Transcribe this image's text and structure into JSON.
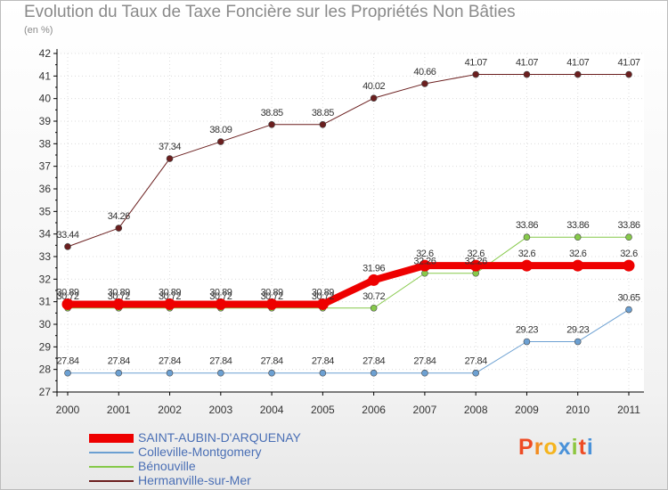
{
  "chart_data": {
    "type": "line",
    "title": "Evolution du Taux de Taxe Foncière sur les Propriétés Non Bâties",
    "ylabel": "(en %)",
    "xlabel": "",
    "x": [
      "2000",
      "2001",
      "2002",
      "2003",
      "2004",
      "2005",
      "2006",
      "2007",
      "2008",
      "2009",
      "2010",
      "2011"
    ],
    "ylim": [
      27,
      42
    ],
    "yticks": [
      "27",
      "28",
      "29",
      "30",
      "31",
      "32",
      "33",
      "34",
      "35",
      "36",
      "37",
      "38",
      "39",
      "40",
      "41",
      "42"
    ],
    "series": [
      {
        "name": "Hermanville-sur-Mer",
        "color": "#6b1f1f",
        "width": 1,
        "values": [
          33.44,
          34.26,
          37.34,
          38.09,
          38.85,
          38.85,
          40.02,
          40.66,
          41.07,
          41.07,
          41.07,
          41.07
        ],
        "labels": [
          "33.44",
          "34.26",
          "37.34",
          "38.09",
          "38.85",
          "38.85",
          "40.02",
          "40.66",
          "41.07",
          "41.07",
          "41.07",
          "41.07"
        ]
      },
      {
        "name": "Bénouville",
        "color": "#86c94a",
        "width": 1,
        "values": [
          30.72,
          30.72,
          30.72,
          30.72,
          30.72,
          30.72,
          30.72,
          32.26,
          32.26,
          33.86,
          33.86,
          33.86
        ],
        "labels": [
          "30.72",
          "30.72",
          "30.72",
          "30.72",
          "30.72",
          "30.72",
          "30.72",
          "32.26",
          "32.26",
          "33.86",
          "33.86",
          "33.86"
        ]
      },
      {
        "name": "Colleville-Montgomery",
        "color": "#6ca0d2",
        "width": 1,
        "values": [
          27.84,
          27.84,
          27.84,
          27.84,
          27.84,
          27.84,
          27.84,
          27.84,
          27.84,
          29.23,
          29.23,
          30.65
        ],
        "labels": [
          "27.84",
          "27.84",
          "27.84",
          "27.84",
          "27.84",
          "27.84",
          "27.84",
          "27.84",
          "27.84",
          "29.23",
          "29.23",
          "30.65"
        ]
      },
      {
        "name": "SAINT-AUBIN-D'ARQUENAY",
        "color": "#ee0000",
        "width": 8,
        "values": [
          30.89,
          30.89,
          30.89,
          30.89,
          30.89,
          30.89,
          31.96,
          32.6,
          32.6,
          32.6,
          32.6,
          32.6
        ],
        "labels": [
          "30.89",
          "30.89",
          "30.89",
          "30.89",
          "30.89",
          "30.89",
          "31.96",
          "32.6",
          "32.6",
          "32.6",
          "32.6",
          "32.6"
        ]
      }
    ],
    "legend": [
      "SAINT-AUBIN-D'ARQUENAY",
      "Colleville-Montgomery",
      "Bénouville",
      "Hermanville-sur-Mer"
    ],
    "legend_position": "bottom-left"
  },
  "logo": {
    "text": "Proxiti"
  }
}
